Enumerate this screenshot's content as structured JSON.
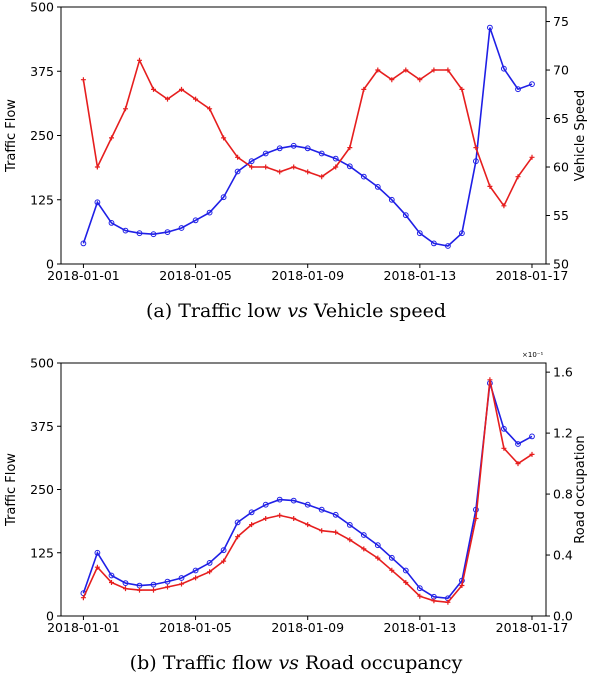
{
  "captions": {
    "a": {
      "prefix": "(a) Traffic low ",
      "vs": "vs",
      "suffix": " Vehicle speed"
    },
    "b": {
      "prefix": "(b) Traffic flow ",
      "vs": "vs",
      "suffix": " Road occupancy"
    }
  },
  "chart_data": [
    {
      "type": "line",
      "xlabel": "",
      "ylabel": "Traffic Flow",
      "y2label": "Vehicle Speed",
      "xticks": [
        "2018-01-01",
        "2018-01-05",
        "2018-01-09",
        "2018-01-13",
        "2018-01-17"
      ],
      "xlim_days": [
        -0.8,
        16.5
      ],
      "ylim": [
        0,
        500
      ],
      "yticks": [
        0,
        125,
        250,
        375,
        500
      ],
      "y2lim": [
        50,
        76.5
      ],
      "y2ticks": [
        50,
        55,
        60,
        65,
        70,
        75
      ],
      "grid": false,
      "series": [
        {
          "axis": "left",
          "color": "#1f1fe6",
          "marker": "circle",
          "x_days": [
            0.0,
            0.5,
            1.0,
            1.5,
            2.0,
            2.5,
            3.0,
            3.5,
            4.0,
            4.5,
            5.0,
            5.5,
            6.0,
            6.5,
            7.0,
            7.5,
            8.0,
            8.5,
            9.0,
            9.5,
            10.0,
            10.5,
            11.0,
            11.5,
            12.0,
            12.5,
            13.0,
            13.5,
            14.0,
            14.5,
            15.0,
            15.5,
            16.0
          ],
          "values": [
            40,
            120,
            80,
            65,
            60,
            58,
            62,
            70,
            85,
            100,
            130,
            180,
            200,
            215,
            225,
            230,
            225,
            215,
            205,
            190,
            170,
            150,
            125,
            95,
            60,
            40,
            35,
            60,
            200,
            460,
            380,
            340,
            350
          ]
        },
        {
          "axis": "right",
          "color": "#e61e1e",
          "marker": "plus",
          "x_days": [
            0.0,
            0.5,
            1.0,
            1.5,
            2.0,
            2.5,
            3.0,
            3.5,
            4.0,
            4.5,
            5.0,
            5.5,
            6.0,
            6.5,
            7.0,
            7.5,
            8.0,
            8.5,
            9.0,
            9.5,
            10.0,
            10.5,
            11.0,
            11.5,
            12.0,
            12.5,
            13.0,
            13.5,
            14.0,
            14.5,
            15.0,
            15.5,
            16.0
          ],
          "values": [
            69,
            60,
            63,
            66,
            71,
            68,
            67,
            68,
            67,
            66,
            63,
            61,
            60,
            60,
            59.5,
            60,
            59.5,
            59,
            60,
            62,
            68,
            70,
            69,
            70,
            69,
            70,
            70,
            68,
            62,
            58,
            56,
            59,
            61
          ]
        }
      ]
    },
    {
      "type": "line",
      "xlabel": "",
      "ylabel": "Traffic Flow",
      "y2label": "Road occupation",
      "y2_scale_label": "×10⁻¹",
      "xticks": [
        "2018-01-01",
        "2018-01-05",
        "2018-01-09",
        "2018-01-13",
        "2018-01-17"
      ],
      "xlim_days": [
        -0.8,
        16.5
      ],
      "ylim": [
        0,
        500
      ],
      "yticks": [
        0,
        125,
        250,
        375,
        500
      ],
      "y2lim": [
        0,
        1.66
      ],
      "y2ticks": [
        0.0,
        0.4,
        0.8,
        1.2,
        1.6
      ],
      "grid": false,
      "series": [
        {
          "axis": "left",
          "color": "#1f1fe6",
          "marker": "circle",
          "x_days": [
            0.0,
            0.5,
            1.0,
            1.5,
            2.0,
            2.5,
            3.0,
            3.5,
            4.0,
            4.5,
            5.0,
            5.5,
            6.0,
            6.5,
            7.0,
            7.5,
            8.0,
            8.5,
            9.0,
            9.5,
            10.0,
            10.5,
            11.0,
            11.5,
            12.0,
            12.5,
            13.0,
            13.5,
            14.0,
            14.5,
            15.0,
            15.5,
            16.0
          ],
          "values": [
            45,
            125,
            80,
            65,
            60,
            62,
            68,
            75,
            90,
            105,
            130,
            185,
            205,
            220,
            230,
            228,
            220,
            210,
            200,
            180,
            160,
            140,
            115,
            90,
            55,
            38,
            35,
            70,
            210,
            460,
            370,
            340,
            355
          ]
        },
        {
          "axis": "right",
          "color": "#e61e1e",
          "marker": "plus",
          "x_days": [
            0.0,
            0.5,
            1.0,
            1.5,
            2.0,
            2.5,
            3.0,
            3.5,
            4.0,
            4.5,
            5.0,
            5.5,
            6.0,
            6.5,
            7.0,
            7.5,
            8.0,
            8.5,
            9.0,
            9.5,
            10.0,
            10.5,
            11.0,
            11.5,
            12.0,
            12.5,
            13.0,
            13.5,
            14.0,
            14.5,
            15.0,
            15.5,
            16.0
          ],
          "values": [
            0.12,
            0.32,
            0.22,
            0.18,
            0.17,
            0.17,
            0.19,
            0.21,
            0.25,
            0.29,
            0.36,
            0.52,
            0.6,
            0.64,
            0.66,
            0.64,
            0.6,
            0.56,
            0.55,
            0.5,
            0.44,
            0.38,
            0.3,
            0.22,
            0.13,
            0.1,
            0.09,
            0.2,
            0.64,
            1.55,
            1.1,
            1.0,
            1.06
          ]
        }
      ]
    }
  ]
}
